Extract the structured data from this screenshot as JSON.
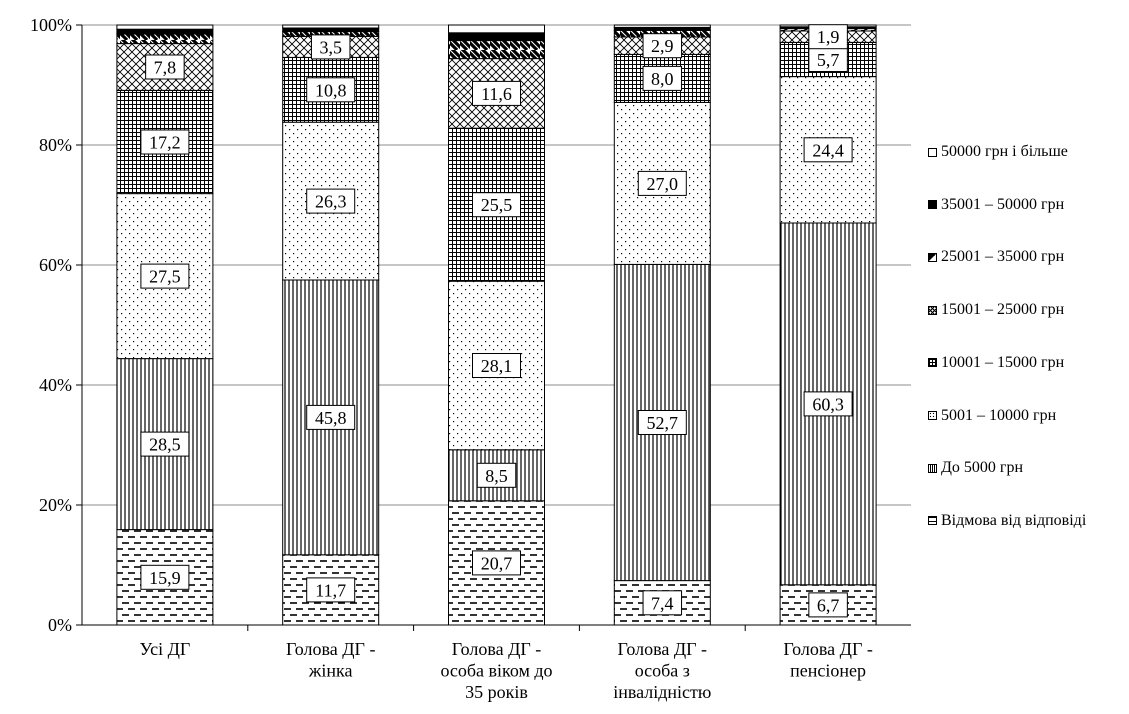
{
  "chart_data": {
    "type": "bar",
    "stacked": true,
    "y_format": "percent",
    "ylim": [
      0,
      100
    ],
    "yticks": [
      "0%",
      "20%",
      "40%",
      "60%",
      "80%",
      "100%"
    ],
    "grid": true,
    "legend_position": "right",
    "categories": [
      [
        "Усі ДГ"
      ],
      [
        "Голова ДГ -",
        "жінка"
      ],
      [
        "Голова ДГ -",
        "особа віком до",
        "35 років"
      ],
      [
        "Голова ДГ -",
        "особа з",
        "інвалідністю"
      ],
      [
        "Голова ДГ -",
        "пенсіонер"
      ]
    ],
    "series": [
      {
        "name": "Відмова від відповіді",
        "pattern": "dashes",
        "values": [
          15.9,
          11.7,
          20.7,
          7.4,
          6.7
        ],
        "labels": [
          "15,9",
          "11,7",
          "20,7",
          "7,4",
          "6,7"
        ]
      },
      {
        "name": "До 5000 грн",
        "pattern": "vertical",
        "values": [
          28.5,
          45.8,
          8.5,
          52.7,
          60.3
        ],
        "labels": [
          "28,5",
          "45,8",
          "8,5",
          "52,7",
          "60,3"
        ]
      },
      {
        "name": "5001 – 10000 грн",
        "pattern": "dots",
        "values": [
          27.5,
          26.3,
          28.1,
          27.0,
          24.4
        ],
        "labels": [
          "27,5",
          "26,3",
          "28,1",
          "27,0",
          "24,4"
        ]
      },
      {
        "name": "10001 – 15000 грн",
        "pattern": "grid",
        "values": [
          17.2,
          10.8,
          25.5,
          8.0,
          5.7
        ],
        "labels": [
          "17,2",
          "10,8",
          "25,5",
          "8,0",
          "5,7"
        ]
      },
      {
        "name": "15001 – 25000 грн",
        "pattern": "crosshatch",
        "values": [
          7.8,
          3.5,
          11.6,
          2.9,
          1.9
        ],
        "labels": [
          "7,8",
          "3,5",
          "11,6",
          "2,9",
          "1,9"
        ]
      },
      {
        "name": "25001 – 35000 грн",
        "pattern": "diagonal",
        "values": [
          1.6,
          0.8,
          3.0,
          1.1,
          0.4
        ],
        "labels": [
          "",
          "",
          "",
          "",
          ""
        ]
      },
      {
        "name": "35001 – 50000 грн",
        "pattern": "solid",
        "values": [
          0.8,
          0.6,
          1.3,
          0.5,
          0.3
        ],
        "labels": [
          "",
          "",
          "",
          "",
          ""
        ]
      },
      {
        "name": "50000 грн і більше",
        "pattern": "white",
        "values": [
          0.7,
          0.5,
          1.3,
          0.4,
          0.3
        ],
        "labels": [
          "",
          "",
          "",
          "",
          ""
        ]
      }
    ]
  }
}
